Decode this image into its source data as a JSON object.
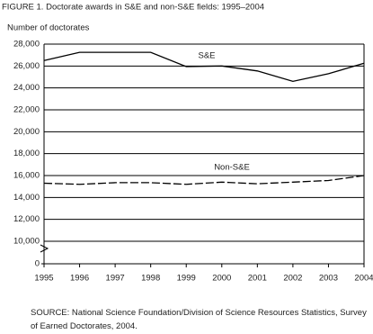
{
  "chart_data": {
    "type": "line",
    "title": "FIGURE 1.  Doctorate awards in S&E and non-S&E fields: 1995–2004",
    "y_label": "Number of doctorates",
    "x": [
      1995,
      1996,
      1997,
      1998,
      1999,
      2000,
      2001,
      2002,
      2003,
      2004
    ],
    "xlim": [
      1995,
      2004
    ],
    "xticks": [
      1995,
      1996,
      1997,
      1998,
      1999,
      2000,
      2001,
      2002,
      2003,
      2004
    ],
    "ylim": [
      0,
      28000
    ],
    "axis_break": [
      0,
      10000
    ],
    "yticks": [
      0,
      {
        "value": 10000,
        "label": "10,000"
      },
      {
        "value": 12000,
        "label": "12,000"
      },
      {
        "value": 14000,
        "label": "14,000"
      },
      {
        "value": 16000,
        "label": "16,000"
      },
      {
        "value": 18000,
        "label": "18,000"
      },
      {
        "value": 20000,
        "label": "20,000"
      },
      {
        "value": 22000,
        "label": "22,000"
      },
      {
        "value": 24000,
        "label": "24,000"
      },
      {
        "value": 26000,
        "label": "26,000"
      },
      {
        "value": 28000,
        "label": "28,000"
      }
    ],
    "grid": true,
    "series": [
      {
        "name": "S&E",
        "color": "#000000",
        "dashed": false,
        "values": [
          26500,
          27250,
          27250,
          27250,
          25950,
          26000,
          25550,
          24600,
          25300,
          26250
        ]
      },
      {
        "name": "Non-S&E",
        "color": "#000000",
        "dashed": true,
        "values": [
          15300,
          15200,
          15350,
          15350,
          15200,
          15400,
          15250,
          15400,
          15550,
          16000
        ]
      }
    ],
    "source": "SOURCE: National Science Foundation/Division of Science Resources Statistics, Survey of Earned Doctorates, 2004."
  }
}
